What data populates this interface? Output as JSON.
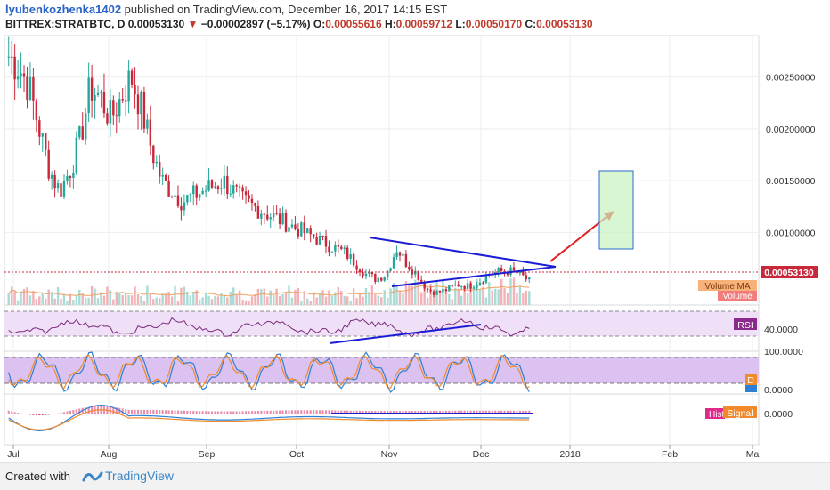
{
  "header": {
    "author": "lyubenkozhenka1402",
    "published": " published on TradingView.com, December 16, 2017 14:15 EST",
    "symbol": "BITTREX:STRATBTC, D",
    "last": "0.00053130",
    "change_arrow": "▼",
    "change": "−0.00002897 (−5.17%)",
    "o_label": "O:",
    "o": "0.00055616",
    "h_label": "H:",
    "h": "0.00059712",
    "l_label": "L:",
    "l": "0.00050170",
    "c_label": "C:",
    "c": "0.00053130"
  },
  "footer": {
    "created": "Created with",
    "brand": "TradingView",
    "icon": "tradingview-logo-icon"
  },
  "labels": {
    "price_badge": "0.00053130",
    "volume_ma": "Volume MA",
    "volume": "Volume",
    "rsi": "RSI",
    "rsi_value": "40.0000",
    "stoch_100": "100.0000",
    "stoch_0": "0.0000",
    "stoch_d": "D",
    "hist": "Hist",
    "signal": "Signal",
    "macd_zero": "0.0000"
  },
  "colors": {
    "up": "#26a69a",
    "down": "#c8283a",
    "annotation_blue": "#1c1cd6",
    "arrow_red": "#e02020",
    "target_box": "#c9f2c0",
    "rsi_band": "#efe0f7",
    "stoch_band": "#dcc2f0",
    "price_badge": "#c8283a",
    "volume_badge": "#f4a460"
  },
  "chart_data": {
    "type": "candlestick",
    "y_axis_ticks": [
      "0.00250000",
      "0.00200000",
      "0.00150000",
      "0.00100000"
    ],
    "ylim": [
      0.0003,
      0.0029
    ],
    "x_axis_ticks": [
      "Jul",
      "Aug",
      "Sep",
      "Oct",
      "Nov",
      "Dec",
      "2018",
      "Feb",
      "Ma"
    ],
    "last_price": 0.0005313,
    "series": [
      {
        "name": "Price",
        "values": [
          0.0027,
          0.0026,
          0.0024,
          0.002,
          0.0016,
          0.0014,
          0.0016,
          0.0019,
          0.0024,
          0.0023,
          0.0021,
          0.0023,
          0.0025,
          0.0022,
          0.0018,
          0.0015,
          0.0014,
          0.0013,
          0.00135,
          0.0014,
          0.00145,
          0.0015,
          0.0014,
          0.0013,
          0.00125,
          0.0012,
          0.00115,
          0.0011,
          0.00105,
          0.001,
          0.00095,
          0.0009,
          0.00085,
          0.0008,
          0.0007,
          0.0006,
          0.00055,
          0.0006,
          0.00085,
          0.0007,
          0.0006,
          0.00045,
          0.00042,
          0.00045,
          0.0005,
          0.00048,
          0.00052,
          0.0006,
          0.00062,
          0.00063,
          0.0006,
          0.00053
        ]
      }
    ],
    "annotations": {
      "triangle_upper": [
        [
          0.49,
          0.00088
        ],
        [
          0.735,
          0.00053
        ]
      ],
      "triangle_lower": [
        [
          0.52,
          0.00045
        ],
        [
          0.735,
          0.00053
        ]
      ],
      "target_box": {
        "low": 0.00075,
        "high": 0.00153
      },
      "rsi_trendline": "rising support",
      "macd_trendline": "horizontal"
    },
    "indicators": [
      "Volume",
      "Volume MA",
      "RSI",
      "Stochastic",
      "MACD"
    ]
  }
}
